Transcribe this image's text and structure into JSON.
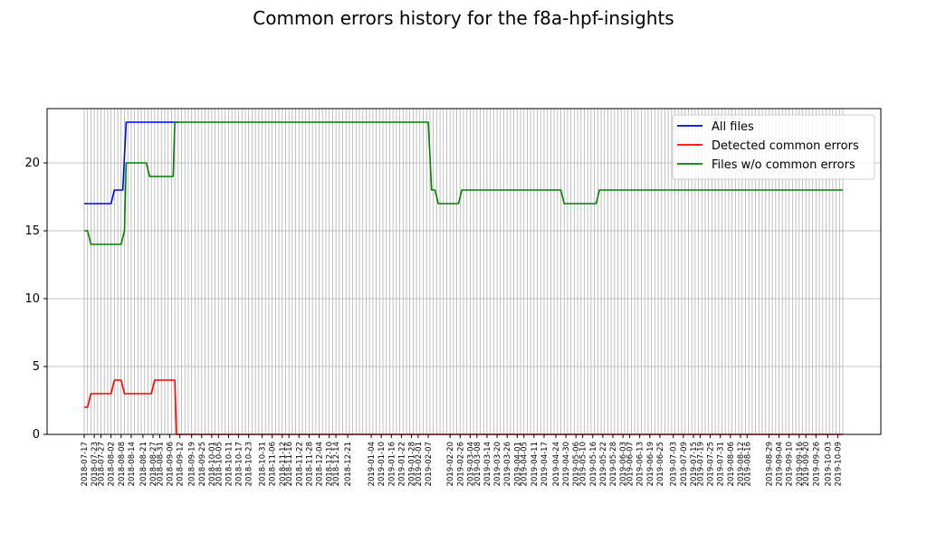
{
  "chart_data": {
    "type": "line",
    "title": "Common errors history for the f8a-hpf-insights",
    "x_start": "2018-07-17",
    "x_end": "2019-10-12",
    "xtick_labels": [
      "2018-07-17",
      "2018-07-23",
      "2018-07-27",
      "2018-08-02",
      "2018-08-08",
      "2018-08-14",
      "2018-08-21",
      "2018-08-27",
      "2018-08-31",
      "2018-09-06",
      "2018-09-12",
      "2018-09-19",
      "2018-09-25",
      "2018-10-01",
      "2018-10-05",
      "2018-10-11",
      "2018-10-17",
      "2018-10-23",
      "2018-10-31",
      "2018-11-06",
      "2018-11-12",
      "2018-11-16",
      "2018-11-22",
      "2018-11-28",
      "2018-12-04",
      "2018-12-10",
      "2018-12-14",
      "2018-12-21",
      "2019-01-04",
      "2019-01-10",
      "2019-01-16",
      "2019-01-22",
      "2019-01-28",
      "2019-02-01",
      "2019-02-07",
      "2019-02-20",
      "2019-02-26",
      "2019-03-04",
      "2019-03-08",
      "2019-03-14",
      "2019-03-20",
      "2019-03-26",
      "2019-04-01",
      "2019-04-05",
      "2019-04-11",
      "2019-04-17",
      "2019-04-24",
      "2019-04-30",
      "2019-05-06",
      "2019-05-10",
      "2019-05-16",
      "2019-05-22",
      "2019-05-28",
      "2019-06-03",
      "2019-06-07",
      "2019-06-13",
      "2019-06-19",
      "2019-06-25",
      "2019-07-03",
      "2019-07-09",
      "2019-07-15",
      "2019-07-19",
      "2019-07-25",
      "2019-07-31",
      "2019-08-06",
      "2019-08-12",
      "2019-08-16",
      "2019-08-29",
      "2019-09-04",
      "2019-09-10",
      "2019-09-16",
      "2019-09-20",
      "2019-09-26",
      "2019-10-03",
      "2019-10-09"
    ],
    "ylim": [
      0,
      24
    ],
    "yticks": [
      0,
      5,
      10,
      15,
      20
    ],
    "grid": true,
    "legend_position": "top-right",
    "series": [
      {
        "name": "All files",
        "color": "#0000ff",
        "points": [
          [
            "2018-07-17",
            17
          ],
          [
            "2018-08-02",
            17
          ],
          [
            "2018-08-04",
            18
          ],
          [
            "2018-08-09",
            18
          ],
          [
            "2018-08-11",
            23
          ],
          [
            "2018-09-11",
            23
          ]
        ]
      },
      {
        "name": "Detected common errors",
        "color": "#ff0000",
        "points": [
          [
            "2018-07-17",
            2
          ],
          [
            "2018-07-19",
            2
          ],
          [
            "2018-07-21",
            3
          ],
          [
            "2018-08-02",
            3
          ],
          [
            "2018-08-04",
            4
          ],
          [
            "2018-08-08",
            4
          ],
          [
            "2018-08-10",
            3
          ],
          [
            "2018-08-26",
            3
          ],
          [
            "2018-08-28",
            4
          ],
          [
            "2018-09-09",
            4
          ],
          [
            "2018-09-10",
            0
          ],
          [
            "2019-10-12",
            0
          ]
        ]
      },
      {
        "name": "Files w/o common errors",
        "color": "#008000",
        "points": [
          [
            "2018-07-17",
            15
          ],
          [
            "2018-07-19",
            15
          ],
          [
            "2018-07-21",
            14
          ],
          [
            "2018-08-08",
            14
          ],
          [
            "2018-08-10",
            15
          ],
          [
            "2018-08-11",
            20
          ],
          [
            "2018-08-23",
            20
          ],
          [
            "2018-08-25",
            19
          ],
          [
            "2018-09-08",
            19
          ],
          [
            "2018-09-09",
            23
          ],
          [
            "2019-02-07",
            23
          ],
          [
            "2019-02-09",
            18
          ],
          [
            "2019-02-11",
            18
          ],
          [
            "2019-02-13",
            17
          ],
          [
            "2019-02-25",
            17
          ],
          [
            "2019-02-27",
            18
          ],
          [
            "2019-04-27",
            18
          ],
          [
            "2019-04-29",
            17
          ],
          [
            "2019-05-18",
            17
          ],
          [
            "2019-05-20",
            18
          ],
          [
            "2019-10-12",
            18
          ]
        ]
      }
    ]
  }
}
